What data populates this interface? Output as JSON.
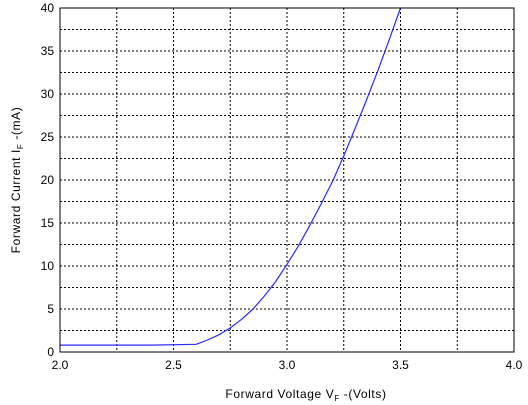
{
  "chart_data": {
    "type": "line",
    "title": "",
    "xlabel": {
      "prefix": "Forward Voltage V",
      "subscript": "F",
      "suffix": " -(Volts)"
    },
    "ylabel": {
      "prefix": "Forward Current I",
      "subscript": "F",
      "suffix": " -(mA)"
    },
    "xlim": [
      2.0,
      4.0
    ],
    "ylim": [
      0,
      40
    ],
    "x_ticks": [
      2.0,
      2.5,
      3.0,
      3.5,
      4.0
    ],
    "x_tick_labels": [
      "2.0",
      "2.5",
      "3.0",
      "3.5",
      "4.0"
    ],
    "y_ticks": [
      0,
      5,
      10,
      15,
      20,
      25,
      30,
      35,
      40
    ],
    "y_tick_labels": [
      "0",
      "5",
      "10",
      "15",
      "20",
      "25",
      "30",
      "35",
      "40"
    ],
    "x_grid_step": 0.25,
    "y_grid_step": 2.5,
    "grid": true,
    "grid_style": "dotted",
    "series": [
      {
        "color": "#2a2aff",
        "x": [
          2.0,
          2.2,
          2.4,
          2.6,
          2.65,
          2.7,
          2.75,
          2.8,
          2.85,
          2.9,
          2.95,
          3.0,
          3.05,
          3.1,
          3.15,
          3.2,
          3.25,
          3.3,
          3.35,
          3.4,
          3.45,
          3.5
        ],
        "y": [
          0.8,
          0.8,
          0.8,
          0.9,
          1.4,
          2.0,
          2.8,
          3.8,
          5.0,
          6.5,
          8.2,
          10.2,
          12.3,
          14.7,
          17.2,
          19.8,
          22.8,
          26.0,
          29.3,
          32.7,
          36.3,
          40.0
        ]
      }
    ]
  }
}
